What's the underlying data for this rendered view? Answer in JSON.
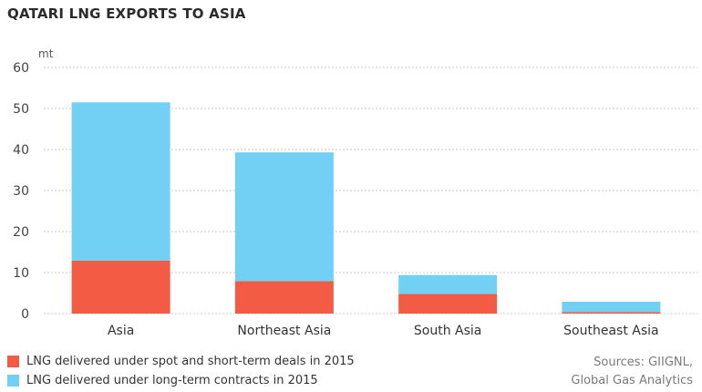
{
  "chart_data": {
    "type": "bar",
    "stacked": true,
    "title": "QATARI LNG EXPORTS TO ASIA",
    "unit_label": "mt",
    "categories": [
      "Asia",
      "Northeast Asia",
      "South Asia",
      "Southeast Asia"
    ],
    "series": [
      {
        "name": "LNG delivered under spot and short-term deals in 2015",
        "color": "#f45b45",
        "values": [
          12.9,
          7.9,
          4.8,
          0.4
        ]
      },
      {
        "name": "LNG delivered under long-term contracts in 2015",
        "color": "#72d0f4",
        "values": [
          38.6,
          31.4,
          4.6,
          2.5
        ]
      }
    ],
    "ylim": [
      0,
      60
    ],
    "yticks": [
      0,
      10,
      20,
      30,
      40,
      50,
      60
    ],
    "grid": true,
    "legend_position": "bottom-left"
  },
  "source": {
    "line1": "Sources: GIIGNL,",
    "line2": "Global Gas Analytics"
  }
}
